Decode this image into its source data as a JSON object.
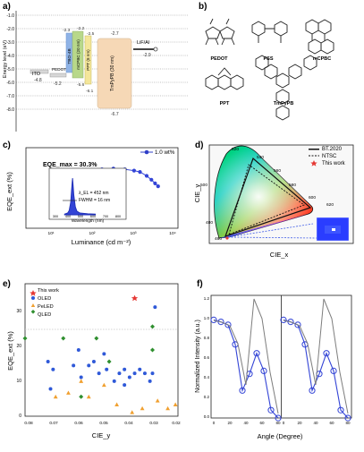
{
  "figure": {
    "panels": {
      "a": {
        "letter": "a)",
        "y_axis_label": "Energy level (eV)",
        "y_tick_labels": [
          "-1.0",
          "-2.0",
          "-3.0",
          "-4.0",
          "-5.0",
          "-6.0",
          "-7.0",
          "-8.0"
        ],
        "layers": [
          {
            "name": "ITO",
            "bottom": "-4.8",
            "top": ""
          },
          {
            "name": "PEDOT:PSS",
            "bottom": "-5.2",
            "top": ""
          },
          {
            "name": "TBO-4B",
            "bottom": "-5.2",
            "top": "-2.3"
          },
          {
            "name": "mCPBC (20 nm)",
            "bottom": "-5.6",
            "top": "-2.2"
          },
          {
            "name": "PPT (8 nm)",
            "bottom": "-6.1",
            "top": "-2.5"
          },
          {
            "name": "TmPyPB (30 nm)",
            "bottom": "-6.7",
            "top": "-2.7"
          },
          {
            "name": "LiF/Al",
            "bottom": "",
            "top": "-2.9"
          }
        ]
      },
      "b": {
        "letter": "b)",
        "molecules": [
          "PEDOT",
          "PSS",
          "mCPBC",
          "PPT",
          "TmPyPB"
        ]
      },
      "c": {
        "letter": "c)",
        "y_axis_label": "EQE_ext (%)",
        "x_axis_label": "Luminance (cd m⁻²)",
        "legend_label": "1.0 wt%",
        "annotation_eqe": "EQE_max = 30.3%",
        "inset_lambda": "λ_EL = 452 nm",
        "inset_fwhm": "FWHM = 16 nm",
        "inset_xlabel": "Wavelength (nm)",
        "inset_xticks": [
          "300",
          "400",
          "500",
          "600",
          "700",
          "800"
        ],
        "x_ticks": [
          "10¹",
          "10²",
          "10³",
          "10⁴"
        ]
      },
      "d": {
        "letter": "d)",
        "y_axis_label": "CIE_y",
        "x_axis_label": "CIE_x",
        "legend": [
          "BT.2020",
          "NTSC",
          "This work"
        ],
        "wavelength_labels": [
          "520",
          "540",
          "560",
          "580",
          "600",
          "620",
          "500",
          "480",
          "460"
        ]
      },
      "e": {
        "letter": "e)",
        "y_axis_label": "EQE_ext (%)",
        "x_axis_label": "CIE_y",
        "legend": [
          "This work",
          "OLED",
          "PeLED",
          "QLED"
        ],
        "x_ticks": [
          "0.08",
          "0.07",
          "0.06",
          "0.05",
          "0.04",
          "0.03",
          "0.02"
        ],
        "y_ticks": [
          "0",
          "10",
          "20",
          "30"
        ]
      },
      "f": {
        "letter": "f)",
        "y_axis_label": "Normalized Intensity (a.u.)",
        "x_axis_label": "Angle (Degree)",
        "y_ticks": [
          "0.0",
          "0.2",
          "0.4",
          "0.6",
          "0.8",
          "1.0",
          "1.2"
        ],
        "x_ticks_left": [
          "0",
          "20",
          "40",
          "60",
          "80"
        ],
        "x_ticks_right": [
          "0",
          "20",
          "40",
          "60",
          "80"
        ]
      }
    },
    "colors": {
      "orange_layer": "#f6c58a",
      "blue_layer": "#8fb3e6",
      "green_layer": "#b8d88a",
      "purple_layer": "#b9b2e5",
      "yellow_layer": "#f4e69a",
      "peach_layer": "#f6d8b6",
      "gray_layer": "#d9d9d9",
      "blue_curve": "#3344d6",
      "red_star": "#e53935",
      "oled_blue": "#2f59d8",
      "peled_orange": "#f0a030",
      "qled_green": "#2f8f2f"
    }
  },
  "chart_data": [
    {
      "type": "line",
      "title": "",
      "xlabel": "Luminance (cd m⁻²)",
      "ylabel": "EQE_ext (%)",
      "x_scale": "log",
      "y_scale": "log",
      "x": [
        10,
        20,
        50,
        100,
        200,
        400,
        700,
        1000,
        1500,
        2000,
        2500,
        3000
      ],
      "series": [
        {
          "name": "1.0 wt%",
          "values": [
            24,
            25,
            27,
            29,
            30.3,
            29,
            27,
            25,
            20,
            16,
            13,
            11
          ]
        }
      ],
      "ylim": [
        1,
        100
      ],
      "xlim": [
        1,
        10000
      ]
    },
    {
      "type": "line",
      "title": "",
      "xlabel": "Wavelength (nm)",
      "ylabel": "",
      "x": [
        400,
        420,
        430,
        440,
        445,
        450,
        452,
        455,
        460,
        470,
        480,
        500,
        550,
        600
      ],
      "series": [
        {
          "name": "",
          "values": [
            0.02,
            0.05,
            0.12,
            0.35,
            0.65,
            0.92,
            1,
            0.85,
            0.55,
            0.22,
            0.1,
            0.05,
            0.03,
            0.02
          ]
        }
      ],
      "xlim": [
        300,
        800
      ],
      "ylim": [
        0,
        1.1
      ]
    },
    {
      "type": "scatter",
      "title": "",
      "xlabel": "CIE_y",
      "ylabel": "EQE_ext (%)",
      "x_reversed": true,
      "series": [
        {
          "name": "This work",
          "x": [
            0.037
          ],
          "y": [
            30.3
          ]
        },
        {
          "name": "OLED",
          "x": [
            0.071,
            0.07,
            0.069,
            0.061,
            0.059,
            0.058,
            0.055,
            0.053,
            0.051,
            0.049,
            0.048,
            0.045,
            0.043,
            0.041,
            0.039,
            0.037,
            0.035,
            0.033,
            0.031,
            0.03,
            0.029,
            0.041
          ],
          "y": [
            14,
            7,
            12,
            13,
            17,
            10,
            13,
            14,
            11,
            16,
            12,
            9,
            11,
            12,
            10,
            11,
            12,
            11,
            9,
            11,
            28,
            8
          ]
        },
        {
          "name": "PeLED",
          "x": [
            0.068,
            0.063,
            0.058,
            0.055,
            0.049,
            0.044,
            0.038,
            0.034,
            0.028,
            0.024,
            0.021
          ],
          "y": [
            5,
            6,
            9,
            5,
            8,
            3,
            1,
            2,
            4,
            2,
            3
          ]
        },
        {
          "name": "QLED",
          "x": [
            0.08,
            0.065,
            0.058,
            0.052,
            0.047,
            0.03,
            0.03
          ],
          "y": [
            20,
            20,
            5,
            20,
            14,
            17,
            23
          ]
        }
      ],
      "xlim": [
        0.08,
        0.02
      ],
      "ylim": [
        0,
        34
      ]
    },
    {
      "type": "line",
      "title": "",
      "xlabel": "Angle (Degree)",
      "ylabel": "Normalized Intensity (a.u.)",
      "x": [
        0,
        10,
        20,
        30,
        40,
        50,
        60,
        70,
        80,
        90
      ],
      "series": [
        {
          "name": "",
          "values": [
            1.0,
            0.98,
            0.95,
            0.75,
            0.28,
            0.45,
            0.66,
            0.48,
            0.08,
            0.0
          ]
        }
      ],
      "ylim": [
        0,
        1.25
      ],
      "xlim": [
        0,
        90
      ]
    }
  ]
}
